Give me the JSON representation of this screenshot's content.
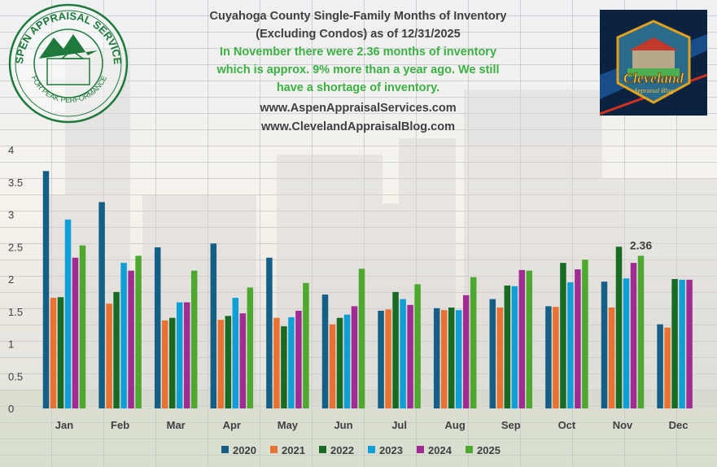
{
  "header": {
    "title_line1": "Cuyahoga County Single-Family Months of Inventory",
    "title_line2": "(Excluding Condos) as of 12/31/2025",
    "note_line1": "In November there were 2.36 months of inventory",
    "note_line2": "which is approx. 9% more than a year ago. We still",
    "note_line3": "have a shortage of inventory.",
    "url1": "www.AspenAppraisalServices.com",
    "url2": "www.ClevelandAppraisalBlog.com"
  },
  "logos": {
    "left": {
      "text_top": "ASPEN APPRAISAL SERVICES",
      "text_bottom": "FOR PEAK PERFORMANCE",
      "color": "#1e7a3c"
    },
    "right": {
      "text_main": "Cleveland",
      "text_sub": "Appraisal Blog"
    }
  },
  "chart_data": {
    "type": "bar",
    "title": "Cuyahoga County Single-Family Months of Inventory (Excluding Condos) as of 12/31/2025",
    "xlabel": "",
    "ylabel": "",
    "ylim": [
      0,
      4
    ],
    "yticks": [
      "0",
      "0.5",
      "1",
      "1.5",
      "2",
      "2.5",
      "3",
      "3.5",
      "4"
    ],
    "grid": true,
    "legend_position": "bottom",
    "categories": [
      "Jan",
      "Feb",
      "Mar",
      "Apr",
      "May",
      "Jun",
      "Jul",
      "Aug",
      "Sep",
      "Oct",
      "Nov",
      "Dec"
    ],
    "series": [
      {
        "name": "2020",
        "color": "#155e85",
        "values": [
          3.67,
          3.19,
          2.49,
          2.55,
          2.33,
          1.76,
          1.51,
          1.55,
          1.69,
          1.58,
          1.96,
          1.3
        ]
      },
      {
        "name": "2021",
        "color": "#e97132",
        "values": [
          1.71,
          1.62,
          1.36,
          1.37,
          1.4,
          1.3,
          1.53,
          1.52,
          1.56,
          1.57,
          1.56,
          1.25
        ]
      },
      {
        "name": "2022",
        "color": "#196b24",
        "values": [
          1.72,
          1.8,
          1.4,
          1.43,
          1.27,
          1.4,
          1.8,
          1.56,
          1.9,
          2.25,
          2.5,
          2.0
        ]
      },
      {
        "name": "2023",
        "color": "#0f9ed5",
        "values": [
          2.92,
          2.25,
          1.64,
          1.71,
          1.41,
          1.45,
          1.69,
          1.52,
          1.89,
          1.95,
          2.01,
          1.99
        ]
      },
      {
        "name": "2024",
        "color": "#a02b93",
        "values": [
          2.33,
          2.13,
          1.64,
          1.47,
          1.51,
          1.58,
          1.6,
          1.75,
          2.14,
          2.15,
          2.25,
          1.99
        ]
      },
      {
        "name": "2025",
        "color": "#4ea72e",
        "values": [
          2.52,
          2.36,
          2.13,
          1.87,
          1.94,
          2.16,
          1.92,
          2.03,
          2.13,
          2.3,
          2.36,
          null
        ]
      }
    ],
    "annotations": [
      {
        "category": "Nov",
        "series": "2025",
        "label": "2.36"
      }
    ]
  }
}
